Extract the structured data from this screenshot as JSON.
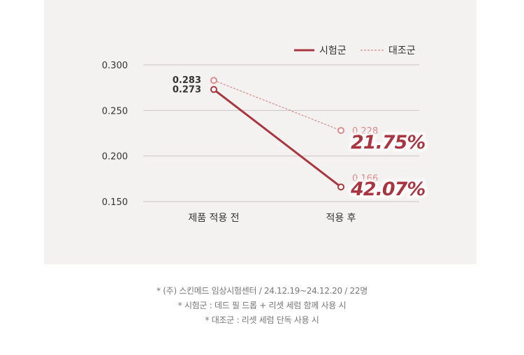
{
  "chart_data": {
    "type": "line",
    "categories": [
      "제품 적용 전",
      "적용 후"
    ],
    "series": [
      {
        "name": "시험군",
        "values": [
          0.273,
          0.166
        ],
        "color": "#a8363f",
        "style": "solid"
      },
      {
        "name": "대조군",
        "values": [
          0.283,
          0.228
        ],
        "color": "#d98a88",
        "style": "dashed"
      }
    ],
    "value_labels": {
      "시험군": [
        "0.273",
        "0.166"
      ],
      "대조군": [
        "0.283",
        "0.228"
      ]
    },
    "yticks": [
      "0.300",
      "0.250",
      "0.200",
      "0.150"
    ],
    "ytick_values": [
      0.3,
      0.25,
      0.2,
      0.15
    ],
    "ylim": [
      0.15,
      0.3
    ],
    "grid": true,
    "legend": "top-right",
    "annotations": [
      {
        "text": "21.75%",
        "series": "대조군",
        "color": "#a8363f"
      },
      {
        "text": "42.07%",
        "series": "시험군",
        "color": "#a8363f"
      }
    ]
  },
  "footnotes": [
    "* (주) 스킨메드 임상시험센터 / 24.12.19~24.12.20 / 22명",
    "* 시험군 : 데드 필 드롭 + 리셋 세럼 함께 사용 시",
    "* 대조군 : 리셋 세럼 단독 사용 시"
  ]
}
